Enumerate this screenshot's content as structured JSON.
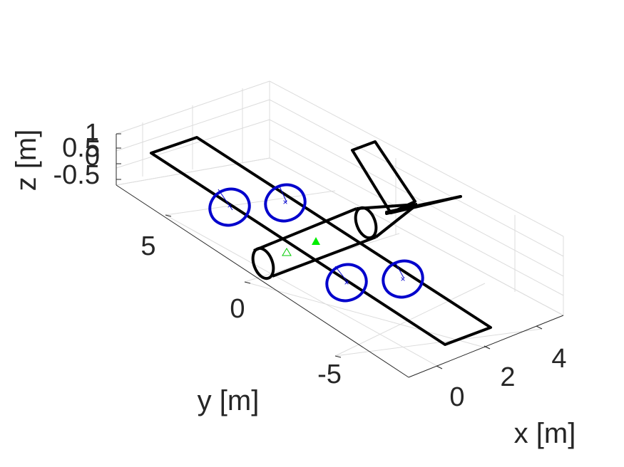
{
  "figure": {
    "axes": {
      "x": {
        "label": "x [m]",
        "ticks": [
          "0",
          "2",
          "4"
        ]
      },
      "y": {
        "label": "y [m]",
        "ticks": [
          "5",
          "0",
          "-5"
        ]
      },
      "z": {
        "label": "z [m]",
        "ticks": [
          "1",
          "0.5",
          "0",
          "-0.5"
        ]
      }
    },
    "colors": {
      "airframe": "#000000",
      "rotors": "#0000cc",
      "cg_marker": "#00ee00",
      "grid": "#dcdcdc",
      "axis": "#262626"
    },
    "markers": {
      "rotor_center": "x-mark",
      "cg": "triangle-up",
      "reference": "triangle-outline"
    }
  }
}
